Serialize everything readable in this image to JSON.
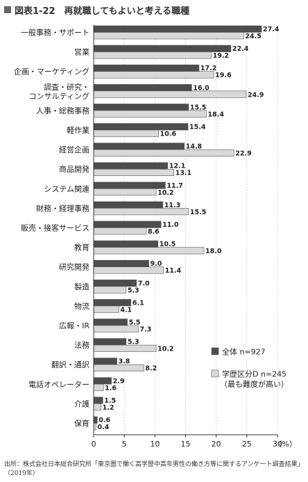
{
  "title": "図表1-22　再就職してもよいと考える職種",
  "source": "出所：株式会社日本総合研究所「東京圏で働く高学歴中高年男性の働き方等に関するアンケート調査結果」（2019年）",
  "colors": {
    "all": "#4d4d4d",
    "group_d": "#d9d9d9",
    "bar_edge": "#555555",
    "grid": "#cccccc"
  },
  "chart_data": {
    "type": "bar",
    "orientation": "horizontal",
    "title": "図表1-22　再就職してもよいと考える職種",
    "categories": [
      [
        "一般事務・サポート"
      ],
      [
        "営業"
      ],
      [
        "企画・マーケティング"
      ],
      [
        "調査・研究・",
        "コンサルティング"
      ],
      [
        "人事・総務事務"
      ],
      [
        "軽作業"
      ],
      [
        "経営企画"
      ],
      [
        "商品開発"
      ],
      [
        "システム関連"
      ],
      [
        "財務・経理事務"
      ],
      [
        "販売・接客サービス"
      ],
      [
        "教育"
      ],
      [
        "研究開発"
      ],
      [
        "製造"
      ],
      [
        "物流"
      ],
      [
        "広報・IR"
      ],
      [
        "法務"
      ],
      [
        "翻訳・通訳"
      ],
      [
        "電話オペレーター"
      ],
      [
        "介護"
      ],
      [
        "保育"
      ]
    ],
    "series": [
      {
        "name": "全体 n=927",
        "values": [
          27.4,
          22.4,
          17.2,
          16.0,
          15.5,
          15.4,
          14.8,
          12.1,
          11.7,
          11.3,
          11.0,
          10.5,
          9.0,
          7.0,
          6.1,
          5.5,
          5.3,
          3.8,
          2.9,
          1.5,
          0.6
        ],
        "labels": [
          "27.4",
          "22.4",
          "17.2",
          "16.0",
          "15.5",
          "15.4",
          "14.8",
          "12.1",
          "11.7",
          "11.3",
          "11.0",
          "10.5",
          "9.0",
          "7.0",
          "6.1",
          "5.5",
          "5.3",
          "3.8",
          "2.9",
          "1.5",
          "0.6"
        ]
      },
      {
        "name": "学歴区分D n=245",
        "name_sub": "（最も難度が高い）",
        "values": [
          24.5,
          19.2,
          19.6,
          24.9,
          18.4,
          10.6,
          22.9,
          13.1,
          10.2,
          15.5,
          8.6,
          18.0,
          11.4,
          5.3,
          4.1,
          7.3,
          10.2,
          8.2,
          1.6,
          1.2,
          0.4
        ],
        "labels": [
          "24.5",
          "19.2",
          "19.6",
          "24.9",
          "18.4",
          "10.6",
          "22.9",
          "13.1",
          "10.2",
          "15.5",
          "8.6",
          "18.0",
          "11.4",
          "5.3",
          "4.1",
          "7.3",
          "10.2",
          "8.2",
          "1.6",
          "1.2",
          "0.4"
        ]
      }
    ],
    "x_ticks": [
      "0",
      "5",
      "10",
      "15",
      "20",
      "25",
      "30"
    ],
    "xlim": [
      0,
      30
    ],
    "unit": "（%）",
    "grid": true,
    "legend_position": "bottom-right"
  }
}
